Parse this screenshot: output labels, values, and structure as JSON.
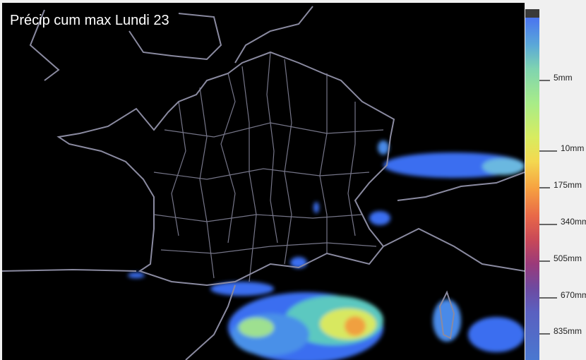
{
  "title": "Précip cum max Lundi 23",
  "colors": {
    "background": "#000000",
    "borders": "#8a8aa0",
    "panel": "#f0f0f0"
  },
  "legend": {
    "labels": [
      "5mm",
      "10mm",
      "175mm",
      "340mm",
      "505mm",
      "670mm",
      "835mm"
    ]
  }
}
